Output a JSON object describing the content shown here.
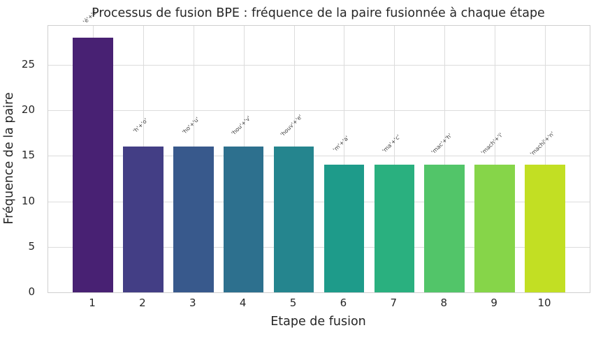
{
  "chart_data": {
    "type": "bar",
    "title": "Processus de fusion BPE : fréquence de la paire fusionnée à chaque étape",
    "xlabel": "Etape de fusion",
    "ylabel": "Fréquence de la paire",
    "categories": [
      "1",
      "2",
      "3",
      "4",
      "5",
      "6",
      "7",
      "8",
      "9",
      "10"
    ],
    "x": [
      1,
      2,
      3,
      4,
      5,
      6,
      7,
      8,
      9,
      10
    ],
    "values": [
      28,
      16,
      16,
      16,
      16,
      14,
      14,
      14,
      14,
      14
    ],
    "bar_labels": [
      "'é'+'z'",
      "'h'+'o'",
      "'ho'+'u'",
      "'hou'+'v'",
      "'houv'+'e'",
      "'m'+'a'",
      "'ma'+'c'",
      "'mac'+'h'",
      "'mach'+'i'",
      "'machi'+'n'"
    ],
    "bar_colors": [
      "#482173",
      "#433e85",
      "#38598c",
      "#2d708e",
      "#25858e",
      "#1e9b8a",
      "#2ab07f",
      "#52c569",
      "#86d549",
      "#c2df23"
    ],
    "ylim": [
      0,
      29.3
    ],
    "xlim": [
      0.11,
      10.89
    ],
    "yticks": [
      0,
      5,
      10,
      15,
      20,
      25
    ],
    "bar_width_units": 0.8,
    "label_offset_units": 2,
    "grid": true,
    "legend": "none"
  },
  "colors": {
    "grid": "#dcdcdc",
    "spine": "#cfcfcf",
    "text": "#262626",
    "bar_label_text": "#3d3d3d",
    "background": "#ffffff"
  }
}
